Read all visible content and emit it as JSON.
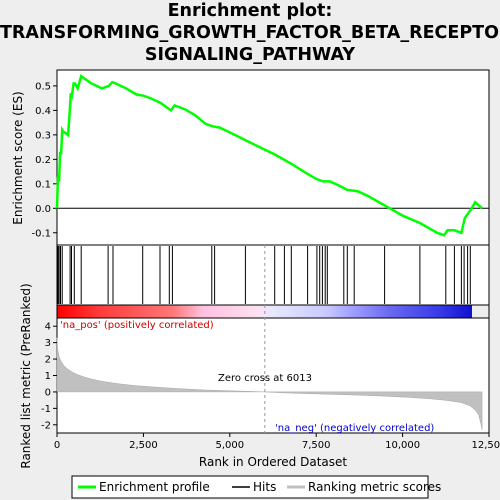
{
  "title_lines": [
    "Enrichment plot:",
    "TRANSFORMING_GROWTH_FACTOR_BETA_RECEPTOR_",
    "SIGNALING_PATHWAY"
  ],
  "chart_data": {
    "type": "line",
    "es_panel": {
      "ylabel": "Enrichment score (ES)",
      "xlim": [
        0,
        12500
      ],
      "ylim": [
        -0.15,
        0.565
      ],
      "yticks": [
        "-0.1",
        "0.0",
        "0.1",
        "0.2",
        "0.3",
        "0.4",
        "0.5"
      ],
      "ytick_values": [
        -0.1,
        0.0,
        0.1,
        0.2,
        0.3,
        0.4,
        0.5
      ],
      "series": [
        {
          "name": "Enrichment profile",
          "color": "#00ff00",
          "x": [
            0,
            30,
            60,
            90,
            120,
            150,
            190,
            230,
            270,
            320,
            370,
            400,
            430,
            480,
            520,
            600,
            700,
            800,
            1000,
            1300,
            1500,
            1600,
            1700,
            2000,
            2300,
            2500,
            2700,
            3000,
            3300,
            3400,
            3700,
            4000,
            4300,
            4500,
            4700,
            5000,
            5500,
            6000,
            6300,
            6800,
            7200,
            7500,
            7700,
            7900,
            8200,
            8400,
            8700,
            9000,
            9500,
            10000,
            10500,
            11000,
            11200,
            11300,
            11500,
            11700,
            11800,
            11900,
            12000,
            12100,
            12300
          ],
          "y": [
            0.0,
            0.13,
            0.11,
            0.23,
            0.22,
            0.32,
            0.31,
            0.31,
            0.305,
            0.3,
            0.4,
            0.47,
            0.46,
            0.51,
            0.51,
            0.49,
            0.54,
            0.53,
            0.51,
            0.49,
            0.5,
            0.515,
            0.51,
            0.49,
            0.465,
            0.46,
            0.45,
            0.43,
            0.4,
            0.42,
            0.405,
            0.38,
            0.345,
            0.335,
            0.33,
            0.31,
            0.275,
            0.24,
            0.22,
            0.18,
            0.145,
            0.12,
            0.11,
            0.11,
            0.09,
            0.075,
            0.07,
            0.05,
            0.01,
            -0.03,
            -0.06,
            -0.1,
            -0.11,
            -0.09,
            -0.09,
            -0.1,
            -0.04,
            -0.02,
            0.0,
            0.025,
            0.0
          ]
        }
      ]
    },
    "hits": {
      "name": "Hits",
      "color": "#000000",
      "x": [
        30,
        60,
        100,
        150,
        380,
        420,
        500,
        700,
        1480,
        1620,
        2480,
        2980,
        3250,
        3340,
        4480,
        4560,
        5450,
        6300,
        6580,
        6780,
        7250,
        7520,
        7600,
        7680,
        7760,
        7820,
        8300,
        8400,
        8600,
        9480,
        10500,
        11250,
        11500,
        11700,
        11780,
        11880,
        11960
      ]
    },
    "metric_panel": {
      "ylabel": "Ranked list metric (PreRanked)",
      "xlabel": "Rank in Ordered Dataset",
      "ylim": [
        -2.5,
        4.5
      ],
      "yticks": [
        "-2",
        "-1",
        "0",
        "1",
        "2",
        "3",
        "4"
      ],
      "ytick_values": [
        -2,
        -1,
        0,
        1,
        2,
        3,
        4
      ],
      "xticks": [
        "0",
        "2,500",
        "5,000",
        "7,500",
        "10,000",
        "12,500"
      ],
      "xtick_values": [
        0,
        2500,
        5000,
        7500,
        10000,
        12500
      ],
      "zero_cross_label": "Zero cross at 6013",
      "zero_cross": 6013,
      "pos_label": "'na_pos' (positively correlated)",
      "neg_label": "'na_neg' (negatively correlated)",
      "curve": {
        "name": "Ranking metric scores",
        "x": [
          0,
          20,
          60,
          120,
          200,
          300,
          450,
          600,
          800,
          1000,
          1300,
          1700,
          2200,
          2800,
          3500,
          4300,
          5000,
          5600,
          6013,
          6500,
          7200,
          8000,
          8800,
          9500,
          10200,
          10800,
          11300,
          11700,
          11950,
          12100,
          12200,
          12260,
          12300
        ],
        "y": [
          3.3,
          2.6,
          2.15,
          1.85,
          1.6,
          1.4,
          1.2,
          1.05,
          0.9,
          0.78,
          0.65,
          0.52,
          0.4,
          0.3,
          0.2,
          0.12,
          0.07,
          0.03,
          0.0,
          -0.05,
          -0.1,
          -0.15,
          -0.2,
          -0.26,
          -0.33,
          -0.42,
          -0.52,
          -0.65,
          -0.85,
          -1.1,
          -1.4,
          -1.9,
          -2.3
        ]
      },
      "curve_color": "#c0c0c0"
    },
    "legend": [
      {
        "label": "Enrichment profile",
        "color": "#00ff00"
      },
      {
        "label": "Hits",
        "color": "#000000"
      },
      {
        "label": "Ranking metric scores",
        "color": "#c0c0c0"
      }
    ]
  }
}
